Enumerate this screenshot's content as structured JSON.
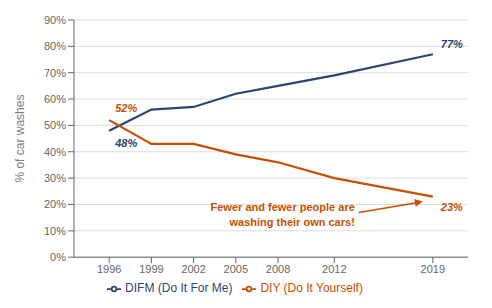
{
  "chart_data": {
    "type": "line",
    "x": [
      1996,
      1999,
      2002,
      2005,
      2008,
      2012,
      2019
    ],
    "xlim": [
      1993.5,
      2021.5
    ],
    "xticks": [
      1996,
      1999,
      2002,
      2005,
      2008,
      2012,
      2019
    ],
    "ylim": [
      0.0,
      0.9
    ],
    "yticks": [
      {
        "value": 0.0,
        "label": "0%"
      },
      {
        "value": 0.1,
        "label": "10%"
      },
      {
        "value": 0.2,
        "label": "20%"
      },
      {
        "value": 0.3,
        "label": "30%"
      },
      {
        "value": 0.4,
        "label": "40%"
      },
      {
        "value": 0.5,
        "label": "50%"
      },
      {
        "value": 0.6,
        "label": "60%"
      },
      {
        "value": 0.7,
        "label": "70%"
      },
      {
        "value": 0.8,
        "label": "80%"
      },
      {
        "value": 0.9,
        "label": "90%"
      }
    ],
    "ylabel": "% of car washes",
    "grid": true,
    "legend": "bottom",
    "series": [
      {
        "name": "DIFM (Do It For Me)",
        "color": "#2E4472",
        "values": [
          0.48,
          0.56,
          0.57,
          0.62,
          0.65,
          0.69,
          0.77
        ],
        "value_labels": [
          "48%",
          null,
          null,
          null,
          null,
          null,
          "77%"
        ]
      },
      {
        "name": "DIY (Do It Yourself)",
        "color": "#C85000",
        "values": [
          0.52,
          0.43,
          0.43,
          0.39,
          0.36,
          0.3,
          0.23
        ],
        "value_labels": [
          "52%",
          null,
          null,
          null,
          null,
          null,
          "23%"
        ]
      }
    ],
    "annotations": [
      {
        "text": "Fewer and fewer people are\nwashing their own cars!",
        "color": "#C85000"
      }
    ]
  }
}
